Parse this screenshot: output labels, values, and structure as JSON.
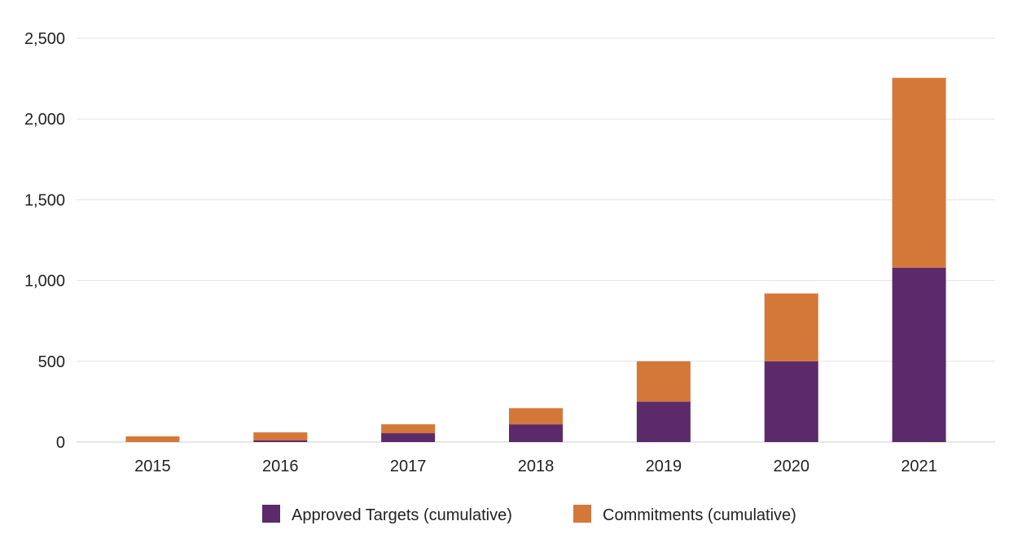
{
  "chart_data": {
    "type": "bar",
    "stacked": true,
    "title": "",
    "xlabel": "",
    "ylabel": "",
    "categories": [
      "2015",
      "2016",
      "2017",
      "2018",
      "2019",
      "2020",
      "2021"
    ],
    "series": [
      {
        "name": "Approved Targets (cumulative)",
        "color": "#5c296b",
        "values": [
          0,
          10,
          55,
          110,
          250,
          500,
          1080
        ]
      },
      {
        "name": "Commitments (cumulative)",
        "color": "#d4783a",
        "values": [
          35,
          50,
          55,
          100,
          250,
          420,
          1175
        ]
      }
    ],
    "ylim": [
      0,
      2500
    ],
    "yticks": [
      0,
      500,
      1000,
      1500,
      2000,
      2500
    ],
    "ytick_labels": [
      "0",
      "500",
      "1,000",
      "1,500",
      "2,000",
      "2,500"
    ],
    "grid": true,
    "legend_position": "bottom-center"
  }
}
